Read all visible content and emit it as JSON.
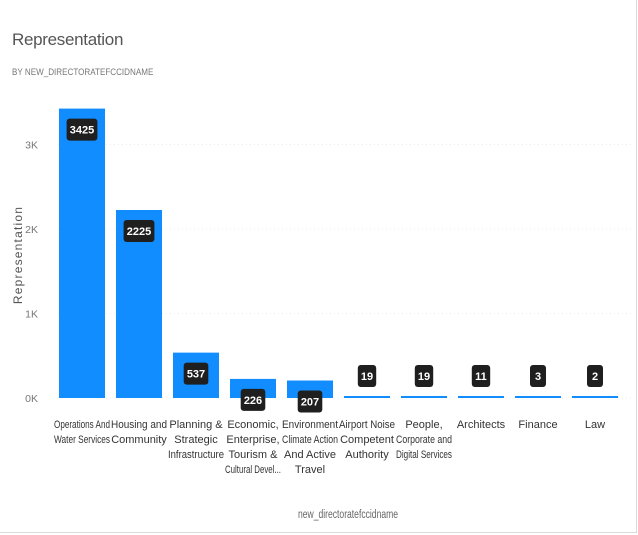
{
  "chart_data": {
    "type": "bar",
    "title": "Representation",
    "subtitle": "BY NEW_DIRECTORATEFCCIDNAME",
    "xlabel": "new_directoratefccidname",
    "ylabel": "Representation",
    "ylim": [
      0,
      3500
    ],
    "yticks": [
      {
        "value": 0,
        "label": "0K"
      },
      {
        "value": 1000,
        "label": "1K"
      },
      {
        "value": 2000,
        "label": "2K"
      },
      {
        "value": 3000,
        "label": "3K"
      }
    ],
    "grid": true,
    "color": "#118DFF",
    "categories": [
      [
        "Operations And",
        "Water Services"
      ],
      [
        "Housing and",
        "Community"
      ],
      [
        "Planning &",
        "Strategic",
        "Infrastructure"
      ],
      [
        "Economic,",
        "Enterprise,",
        "Tourism &",
        "Cultural Devel..."
      ],
      [
        "Environment",
        "Climate Action",
        "And Active",
        "Travel"
      ],
      [
        "Airport Noise",
        "Competent",
        "Authority"
      ],
      [
        "People,",
        "Corporate and",
        "Digital Services"
      ],
      [
        "Architects"
      ],
      [
        "Finance"
      ],
      [
        "Law"
      ]
    ],
    "values": [
      3425,
      2225,
      537,
      226,
      207,
      19,
      19,
      11,
      3,
      2
    ]
  }
}
